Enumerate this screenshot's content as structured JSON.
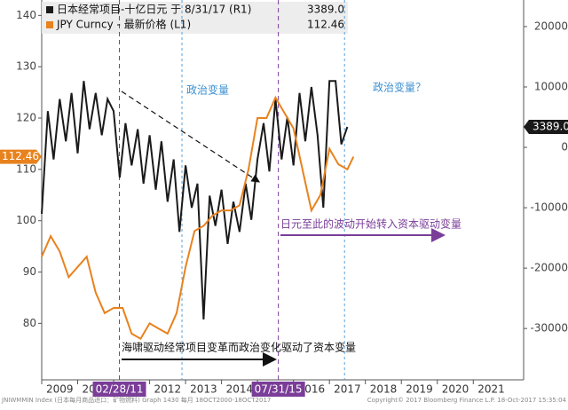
{
  "chart_data": {
    "type": "line",
    "xlim": [
      2009,
      2022.4
    ],
    "xticks": [
      2009,
      2010,
      2011,
      2012,
      2013,
      2014,
      2015,
      2016,
      2017,
      2018,
      2019,
      2020,
      2021
    ],
    "ylim": [
      69,
      143
    ],
    "yticks": [
      80,
      90,
      100,
      110,
      120,
      130,
      140
    ],
    "y2lim": [
      -38500,
      24400
    ],
    "y2ticks": [
      -30000,
      -20000,
      -10000,
      0,
      10000,
      20000
    ],
    "series": [
      {
        "name": "日本经常项目-十亿日元 于 8/31/17 (R1)",
        "color": "#1a1a1a",
        "axis": "y2",
        "last_value_label": "3389.0",
        "x": [
          2009.0,
          2009.17,
          2009.33,
          2009.5,
          2009.67,
          2009.83,
          2010.0,
          2010.17,
          2010.33,
          2010.5,
          2010.67,
          2010.83,
          2011.0,
          2011.17,
          2011.33,
          2011.5,
          2011.67,
          2011.83,
          2012.0,
          2012.17,
          2012.33,
          2012.5,
          2012.67,
          2012.83,
          2013.0,
          2013.17,
          2013.33,
          2013.5,
          2013.67,
          2013.83,
          2014.0,
          2014.17,
          2014.33,
          2014.5,
          2014.67,
          2014.83,
          2015.0,
          2015.17,
          2015.33,
          2015.5,
          2015.67,
          2015.83,
          2016.0,
          2016.17,
          2016.33,
          2016.5,
          2016.67,
          2016.83,
          2017.0,
          2017.17,
          2017.33,
          2017.5
        ],
        "values": [
          -11000,
          6000,
          -2000,
          8000,
          1000,
          9000,
          -1000,
          11000,
          3000,
          9000,
          2000,
          8000,
          6000,
          -5000,
          4000,
          -3000,
          3000,
          -6000,
          2000,
          -7000,
          1000,
          -9000,
          -2000,
          -14000,
          -3000,
          -10000,
          -6000,
          -28500,
          -8000,
          -13000,
          -7000,
          -16000,
          -9000,
          -14000,
          -6000,
          -12000,
          -2000,
          4000,
          -4000,
          8000,
          -2000,
          5000,
          -3000,
          9000,
          1000,
          10000,
          2000,
          -10000,
          11000,
          11000,
          500,
          3389
        ]
      },
      {
        "name": "JPY Curncy - 最新价格 (L1)",
        "color": "#e8821e",
        "axis": "y",
        "last_value_label": "112.46",
        "x": [
          2009.0,
          2009.25,
          2009.5,
          2009.75,
          2010.0,
          2010.25,
          2010.5,
          2010.75,
          2011.0,
          2011.25,
          2011.5,
          2011.75,
          2012.0,
          2012.25,
          2012.5,
          2012.75,
          2013.0,
          2013.25,
          2013.5,
          2013.75,
          2014.0,
          2014.25,
          2014.5,
          2014.75,
          2015.0,
          2015.25,
          2015.5,
          2015.75,
          2016.0,
          2016.25,
          2016.5,
          2016.75,
          2017.0,
          2017.25,
          2017.5,
          2017.67
        ],
        "values": [
          93,
          97,
          94,
          89,
          91,
          93,
          86,
          82,
          83,
          83,
          78,
          77,
          80,
          79,
          78,
          82,
          91,
          98,
          99,
          101,
          102,
          102,
          103,
          110,
          120,
          120,
          124,
          121,
          118,
          110,
          102,
          105,
          114,
          111,
          110,
          112.46
        ]
      }
    ],
    "markers": [
      {
        "x": 2011.16,
        "label": "02/28/11"
      },
      {
        "x": 2015.58,
        "label": "07/31/15"
      }
    ],
    "annotations": [
      "政治变量",
      "政治变量？",
      "日元至此的波动开始转入资本驱动变量",
      "海啸驱动经常项目变革而政治变化驱动了资本变量"
    ],
    "source": "JNIWMMIN Index (日本每月商品进口：矿物燃料) Graph 1430  每月 18OCT2000-18OCT2017",
    "footer": "Copyright© 2017 Bloomberg Finance L.P.   18-Oct-2017 15:35:04"
  }
}
